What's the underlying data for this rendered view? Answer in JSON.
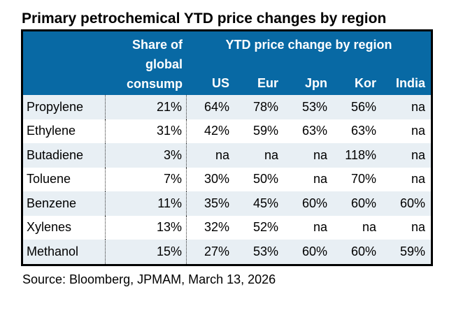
{
  "title": "Primary petrochemical YTD price changes by region",
  "source": "Source: Bloomberg, JPMAM, March 13, 2026",
  "colors": {
    "header_bg": "#0869A4",
    "header_text": "#FFFFFF",
    "band_row_bg": "#E8EFF4",
    "plain_row_bg": "#FFFFFF",
    "outer_border": "#000000",
    "dotted_divider": "#333333"
  },
  "table": {
    "share_header": "Share of\nglobal\nconsump",
    "group_header": "YTD price change by region",
    "region_columns": [
      "US",
      "Eur",
      "Jpn",
      "Kor",
      "India"
    ],
    "rows": [
      {
        "name": "Propylene",
        "share": "21%",
        "values": [
          "64%",
          "78%",
          "53%",
          "56%",
          "na"
        ]
      },
      {
        "name": "Ethylene",
        "share": "31%",
        "values": [
          "42%",
          "59%",
          "63%",
          "63%",
          "na"
        ]
      },
      {
        "name": "Butadiene",
        "share": "3%",
        "values": [
          "na",
          "na",
          "na",
          "118%",
          "na"
        ]
      },
      {
        "name": "Toluene",
        "share": "7%",
        "values": [
          "30%",
          "50%",
          "na",
          "70%",
          "na"
        ]
      },
      {
        "name": "Benzene",
        "share": "11%",
        "values": [
          "35%",
          "45%",
          "60%",
          "60%",
          "60%"
        ]
      },
      {
        "name": "Xylenes",
        "share": "13%",
        "values": [
          "32%",
          "52%",
          "na",
          "na",
          "na"
        ]
      },
      {
        "name": "Methanol",
        "share": "15%",
        "values": [
          "27%",
          "53%",
          "60%",
          "60%",
          "59%"
        ]
      }
    ]
  },
  "chart_data": {
    "type": "table",
    "title": "Primary petrochemical YTD price changes by region",
    "columns": [
      "",
      "Share of global consump",
      "US",
      "Eur",
      "Jpn",
      "Kor",
      "India"
    ],
    "rows": [
      [
        "Propylene",
        "21%",
        "64%",
        "78%",
        "53%",
        "56%",
        "na"
      ],
      [
        "Ethylene",
        "31%",
        "42%",
        "59%",
        "63%",
        "63%",
        "na"
      ],
      [
        "Butadiene",
        "3%",
        "na",
        "na",
        "na",
        "118%",
        "na"
      ],
      [
        "Toluene",
        "7%",
        "30%",
        "50%",
        "na",
        "70%",
        "na"
      ],
      [
        "Benzene",
        "11%",
        "35%",
        "45%",
        "60%",
        "60%",
        "60%"
      ],
      [
        "Xylenes",
        "13%",
        "32%",
        "52%",
        "na",
        "na",
        "na"
      ],
      [
        "Methanol",
        "15%",
        "27%",
        "53%",
        "60%",
        "60%",
        "59%"
      ]
    ],
    "source": "Source: Bloomberg, JPMAM, March 13, 2026"
  }
}
